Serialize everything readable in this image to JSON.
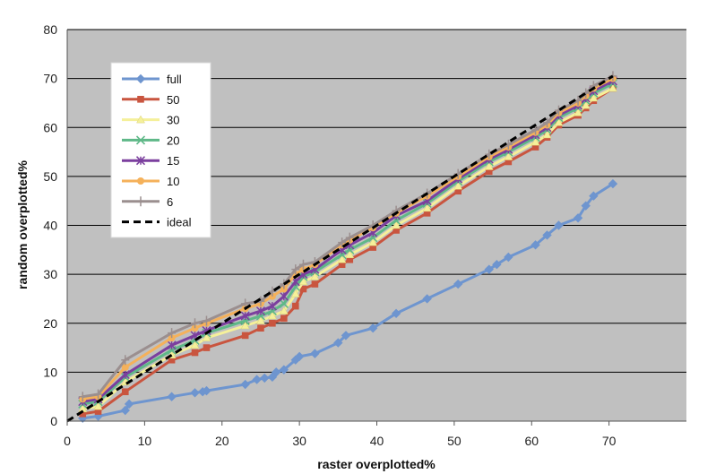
{
  "chart_data": {
    "type": "line",
    "xlabel": "raster overplotted%",
    "ylabel": "random overplotted%",
    "xlim": [
      0,
      80
    ],
    "ylim": [
      0,
      80
    ],
    "xticks": [
      "0",
      "10",
      "20",
      "30",
      "40",
      "50",
      "60",
      "70"
    ],
    "yticks": [
      "0",
      "10",
      "20",
      "30",
      "40",
      "50",
      "60",
      "70",
      "80"
    ],
    "grid": "horizontal",
    "legend_position": "top-left",
    "colors": {
      "plot_background": "#c0c0c0",
      "grid": "#000000"
    },
    "series": [
      {
        "name": "full",
        "color": "#6e95cf",
        "marker": "diamond",
        "x": [
          2,
          4,
          7.5,
          8,
          13.5,
          16.5,
          17.5,
          18,
          23,
          24.5,
          25.5,
          26.5,
          27,
          28,
          29.5,
          30,
          32,
          35,
          36,
          39.5,
          42.5,
          46.5,
          50.5,
          54.5,
          55.5,
          57,
          60.5,
          62,
          63.5,
          66,
          67,
          68,
          70.5
        ],
        "y": [
          0.6,
          1,
          2.2,
          3.5,
          5,
          5.8,
          6,
          6.2,
          7.5,
          8.5,
          8.8,
          9,
          10,
          10.5,
          12.5,
          13.2,
          13.8,
          16,
          17.5,
          19,
          22,
          25,
          28,
          31,
          32,
          33.5,
          36,
          38,
          40,
          41.5,
          44,
          46,
          48.5
        ]
      },
      {
        "name": "50",
        "color": "#c9553f",
        "marker": "square",
        "x": [
          2,
          4,
          7.5,
          13.5,
          16.5,
          18,
          23,
          25,
          26.5,
          28,
          29.5,
          30.5,
          32,
          35.5,
          36.5,
          39.5,
          42.5,
          46.5,
          50.5,
          54.5,
          57,
          60.5,
          62,
          63.5,
          66,
          67,
          68,
          70.5
        ],
        "y": [
          1.5,
          2,
          6,
          12.5,
          14,
          15,
          17.5,
          19,
          20,
          21,
          23.5,
          27,
          28,
          32,
          33,
          35.5,
          39,
          42.5,
          47,
          51,
          53,
          56,
          58,
          60.5,
          62.5,
          64,
          65.5,
          68
        ]
      },
      {
        "name": "30",
        "color": "#f5f09a",
        "marker": "triangle",
        "x": [
          2,
          4,
          7.5,
          13.5,
          16.5,
          18,
          23,
          25,
          26.5,
          28,
          29.5,
          30.5,
          32,
          35.5,
          36.5,
          39.5,
          42.5,
          46.5,
          50.5,
          54.5,
          57,
          60.5,
          62,
          63.5,
          66,
          67,
          68,
          70.5
        ],
        "y": [
          2.5,
          3,
          8,
          13.5,
          15.5,
          17,
          19.5,
          20.5,
          21.5,
          22.5,
          26,
          28.5,
          29.5,
          33,
          34,
          36.5,
          40,
          43.5,
          48,
          52,
          54,
          57,
          58.5,
          61,
          63,
          64.5,
          66,
          68
        ]
      },
      {
        "name": "20",
        "color": "#5fb888",
        "marker": "x",
        "x": [
          2,
          4,
          7.5,
          13.5,
          16.5,
          18,
          23,
          25,
          26.5,
          28,
          29.5,
          30.5,
          32,
          35.5,
          36.5,
          39.5,
          42.5,
          46.5,
          50.5,
          54.5,
          57,
          60.5,
          62,
          63.5,
          66,
          67,
          68,
          70.5
        ],
        "y": [
          3.5,
          4,
          9,
          14.5,
          16.5,
          18,
          20.5,
          21.5,
          22.5,
          24,
          27.5,
          29.5,
          30.5,
          34,
          35,
          37.5,
          41,
          44.5,
          49,
          53,
          55,
          58,
          59.5,
          62,
          64,
          65.5,
          67,
          69
        ]
      },
      {
        "name": "15",
        "color": "#7b3f9e",
        "marker": "star",
        "x": [
          2,
          4,
          7.5,
          13.5,
          16.5,
          18,
          23,
          25,
          26.5,
          28,
          29.5,
          30.5,
          32,
          35.5,
          36.5,
          39.5,
          42.5,
          46.5,
          50.5,
          54.5,
          57,
          60.5,
          62,
          63.5,
          66,
          67,
          68,
          70.5
        ],
        "y": [
          4,
          4.5,
          9.5,
          15.5,
          17.5,
          18.5,
          21.5,
          22.5,
          23.5,
          25.5,
          28.5,
          30,
          31,
          35,
          36,
          38.5,
          42,
          45,
          49.5,
          53.5,
          55.5,
          58.5,
          60,
          62.5,
          64.5,
          66,
          67.5,
          69.5
        ]
      },
      {
        "name": "10",
        "color": "#f5b15a",
        "marker": "circle",
        "x": [
          2,
          4,
          7.5,
          13.5,
          16.5,
          18,
          23,
          25,
          26.5,
          28,
          29.5,
          30.5,
          32,
          35.5,
          36.5,
          39.5,
          42.5,
          46.5,
          50.5,
          54.5,
          57,
          60.5,
          62,
          63.5,
          66,
          67,
          68,
          70.5
        ],
        "y": [
          4.5,
          5,
          11,
          17,
          19,
          20,
          23,
          24,
          25.5,
          27,
          30,
          31,
          32,
          36,
          37,
          39.5,
          42.5,
          46,
          50,
          54,
          56,
          59,
          60.5,
          63,
          65,
          66.5,
          68,
          70
        ]
      },
      {
        "name": "6",
        "color": "#9b8f8f",
        "marker": "plus",
        "x": [
          2,
          4,
          7.5,
          13.5,
          16.5,
          18,
          23,
          25,
          26.5,
          28,
          29.5,
          30.5,
          32,
          35.5,
          36.5,
          39.5,
          42.5,
          46.5,
          50.5,
          54.5,
          57,
          60.5,
          62,
          63.5,
          66,
          67,
          68,
          70.5
        ],
        "y": [
          5,
          5.5,
          12.5,
          18,
          20,
          20.5,
          24,
          24.5,
          26.5,
          28,
          31,
          32,
          32.5,
          36.5,
          37.5,
          40,
          43,
          46.5,
          50.5,
          54.5,
          56.5,
          59.5,
          61,
          63.5,
          65.5,
          67,
          68.5,
          70.5
        ]
      },
      {
        "name": "ideal",
        "color": "#000000",
        "marker": "none",
        "dashed": true,
        "x": [
          0,
          70.5
        ],
        "y": [
          0,
          70.5
        ]
      }
    ]
  }
}
